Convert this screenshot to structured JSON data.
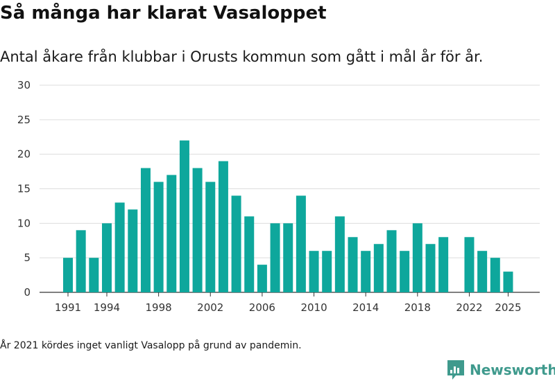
{
  "header": {
    "title": "Så många har klarat Vasaloppet",
    "subtitle": "Antal åkare från klubbar i Orusts kommun som gått i mål år för år."
  },
  "footnote": "År 2021 kördes inget vanligt Vasalopp på grund av pandemin.",
  "brand": {
    "name": "Newsworthy",
    "icon": "newsworthy-logo-icon",
    "color": "#3f9a8d"
  },
  "colors": {
    "bar": "#0ea79c",
    "grid": "#dddddd",
    "axis": "#333333"
  },
  "chart_data": {
    "type": "bar",
    "title": "Så många har klarat Vasaloppet",
    "xlabel": "",
    "ylabel": "",
    "ylim": [
      0,
      30
    ],
    "yticks": [
      0,
      5,
      10,
      15,
      20,
      25,
      30
    ],
    "xticks": [
      1991,
      1994,
      1998,
      2002,
      2006,
      2010,
      2014,
      2018,
      2022,
      2025
    ],
    "grid": true,
    "categories": [
      1991,
      1992,
      1993,
      1994,
      1995,
      1996,
      1997,
      1998,
      1999,
      2000,
      2001,
      2002,
      2003,
      2004,
      2005,
      2006,
      2007,
      2008,
      2009,
      2010,
      2011,
      2012,
      2013,
      2014,
      2015,
      2016,
      2017,
      2018,
      2019,
      2020,
      2021,
      2022,
      2023,
      2024,
      2025
    ],
    "values": [
      5,
      9,
      5,
      10,
      13,
      12,
      18,
      16,
      17,
      22,
      18,
      16,
      19,
      14,
      11,
      4,
      10,
      10,
      14,
      6,
      6,
      11,
      8,
      6,
      7,
      9,
      6,
      10,
      7,
      8,
      null,
      8,
      6,
      5,
      3
    ]
  }
}
